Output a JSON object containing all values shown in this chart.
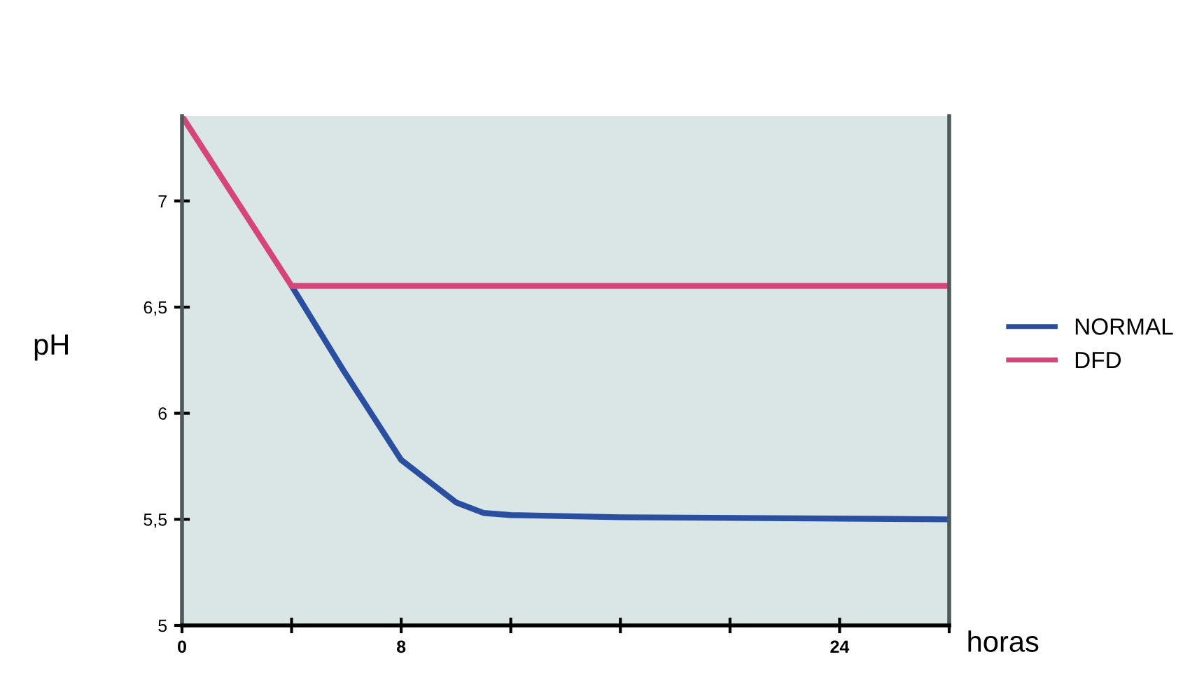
{
  "chart_data": {
    "type": "line",
    "xlabel": "horas",
    "ylabel": "pH",
    "xlim": [
      0,
      28
    ],
    "xticks": [
      0,
      {
        "value": 4,
        "label": null
      },
      8,
      {
        "value": 12,
        "label": null
      },
      {
        "value": 16,
        "label": null
      },
      {
        "value": 20,
        "label": null
      },
      24,
      {
        "value": 28,
        "label": null
      }
    ],
    "ylim": [
      5,
      7.4
    ],
    "yticks": [
      {
        "value": 5,
        "label": "5"
      },
      {
        "value": 5.5,
        "label": "5,5"
      },
      {
        "value": 6,
        "label": "6"
      },
      {
        "value": 6.5,
        "label": "6,5"
      },
      {
        "value": 7,
        "label": "7"
      }
    ],
    "grid": false,
    "legend": "right",
    "marker": "none",
    "line_style": "solid",
    "series": [
      {
        "name": "NORMAL",
        "color": "#2b4fa0",
        "x": [
          4,
          5.9,
          8,
          9,
          10,
          11,
          12,
          16,
          28
        ],
        "values": [
          6.6,
          6.2,
          5.78,
          5.68,
          5.58,
          5.53,
          5.52,
          5.51,
          5.5
        ]
      },
      {
        "name": "DFD",
        "color": "#d6457a",
        "x": [
          0,
          4,
          28
        ],
        "values": [
          7.4,
          6.6,
          6.6
        ]
      }
    ]
  }
}
